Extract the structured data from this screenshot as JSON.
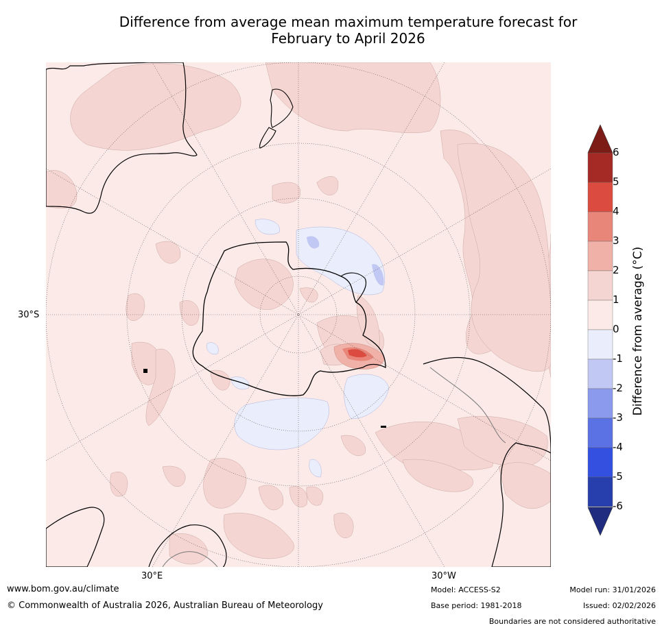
{
  "title_line1": "Difference from average mean maximum temperature forecast for",
  "title_line2": "February to April 2026",
  "map": {
    "lat_label": "30°S",
    "lon_label_east": "30°E",
    "lon_label_west": "30°W",
    "ocean_color": "#fbeae7"
  },
  "colorbar": {
    "title": "Difference from average (°C)",
    "ticks": [
      "6",
      "5",
      "4",
      "3",
      "2",
      "1",
      "0",
      "-1",
      "-2",
      "-3",
      "-4",
      "-5",
      "-6"
    ],
    "colors_top_to_bottom": [
      "#a52a26",
      "#dc4b3f",
      "#e8867a",
      "#efb1a8",
      "#f5d5d2",
      "#fbeae7",
      "#eaedfb",
      "#c1c8f3",
      "#8b9aec",
      "#5a72e4",
      "#3350e0",
      "#263fac"
    ],
    "over_color": "#7d1c17",
    "under_color": "#1f2c80"
  },
  "footer": {
    "website": "www.bom.gov.au/climate",
    "copyright": "© Commonwealth of Australia 2026, Australian Bureau of Meteorology",
    "model": "Model: ACCESS-S2",
    "base_period": "Base period: 1981-2018",
    "model_run": "Model run: 31/01/2026",
    "issued": "Issued: 02/02/2026",
    "disclaimer": "Boundaries are not considered authoritative"
  }
}
